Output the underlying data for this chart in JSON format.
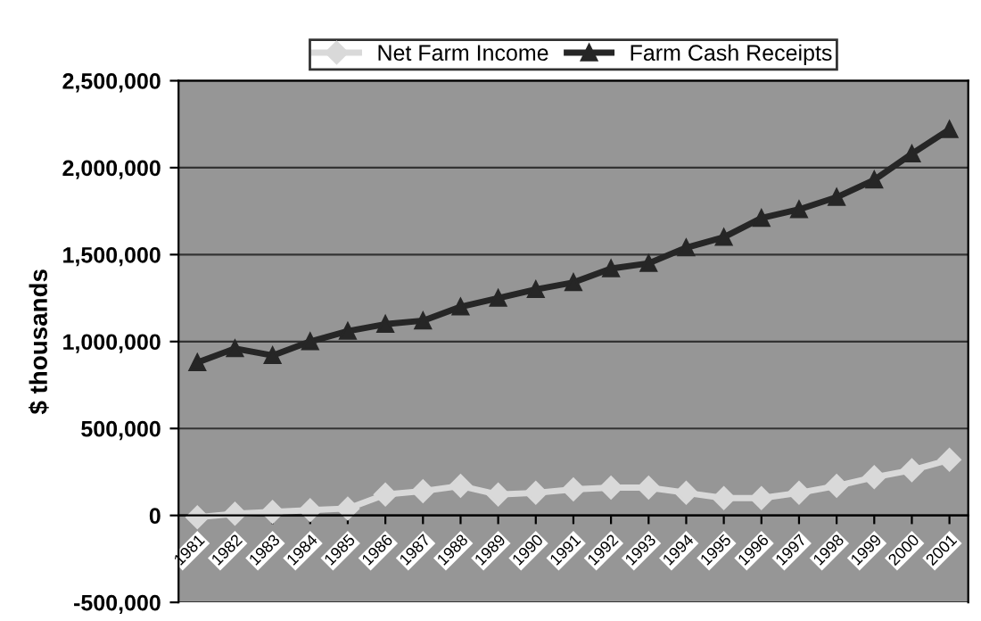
{
  "chart_data": {
    "type": "line",
    "ylabel": "$ thousands",
    "categories": [
      "1981",
      "1982",
      "1983",
      "1984",
      "1985",
      "1986",
      "1987",
      "1988",
      "1989",
      "1990",
      "1991",
      "1992",
      "1993",
      "1994",
      "1995",
      "1996",
      "1997",
      "1998",
      "1999",
      "2000",
      "2001"
    ],
    "series": [
      {
        "name": "Net Farm Income",
        "color": "#d9d9d9",
        "marker": "diamond",
        "values": [
          -10000,
          10000,
          20000,
          30000,
          40000,
          120000,
          140000,
          170000,
          120000,
          130000,
          150000,
          160000,
          160000,
          130000,
          100000,
          100000,
          130000,
          170000,
          220000,
          260000,
          320000
        ]
      },
      {
        "name": "Farm Cash Receipts",
        "color": "#262626",
        "marker": "triangle",
        "values": [
          880000,
          960000,
          920000,
          1000000,
          1060000,
          1100000,
          1120000,
          1200000,
          1250000,
          1300000,
          1340000,
          1420000,
          1450000,
          1540000,
          1600000,
          1710000,
          1760000,
          1830000,
          1930000,
          2080000,
          2220000
        ]
      }
    ],
    "ylim": [
      -500000,
      2500000
    ],
    "yticks": [
      {
        "value": -500000,
        "label": "-500,000"
      },
      {
        "value": 0,
        "label": "0"
      },
      {
        "value": 500000,
        "label": "500,000"
      },
      {
        "value": 1000000,
        "label": "1,000,000"
      },
      {
        "value": 1500000,
        "label": "1,500,000"
      },
      {
        "value": 2000000,
        "label": "2,000,000"
      },
      {
        "value": 2500000,
        "label": "2,500,000"
      }
    ],
    "grid": "y",
    "legend": "top",
    "line_style": "solid"
  }
}
